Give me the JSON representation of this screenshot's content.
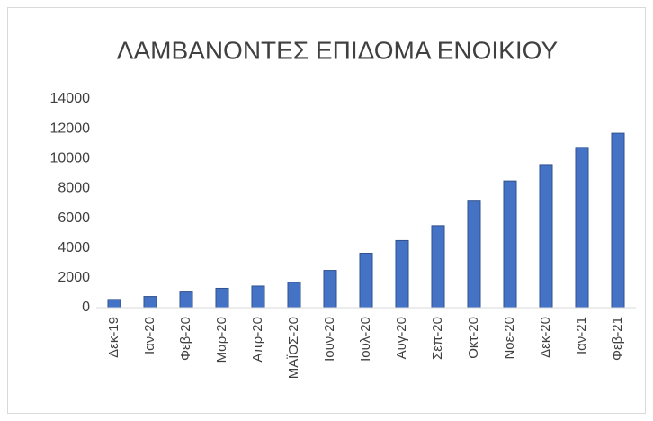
{
  "chart_data": {
    "type": "bar",
    "title": "ΛΑΜΒΑΝΟΝΤΕΣ ΕΠΙΔΟΜΑ ΕΝΟΙΚΙΟΥ",
    "categories": [
      "Δεκ-19",
      "Ιαν-20",
      "Φεβ-20",
      "Μαρ-20",
      "Απρ-20",
      "ΜΑΪΟΣ-20",
      "Ιουν-20",
      "Ιουλ-20",
      "Αυγ-20",
      "Σεπ-20",
      "Οκτ-20",
      "Νοε-20",
      "Δεκ-20",
      "Ιαν-21",
      "Φεβ-21"
    ],
    "values": [
      550,
      750,
      1050,
      1300,
      1450,
      1700,
      2500,
      3650,
      4500,
      5500,
      7200,
      8500,
      9600,
      10750,
      11700
    ],
    "color": "#4472c4",
    "ylim": [
      0,
      14000
    ],
    "yticks": [
      0,
      2000,
      4000,
      6000,
      8000,
      10000,
      12000,
      14000
    ],
    "grid": false
  }
}
